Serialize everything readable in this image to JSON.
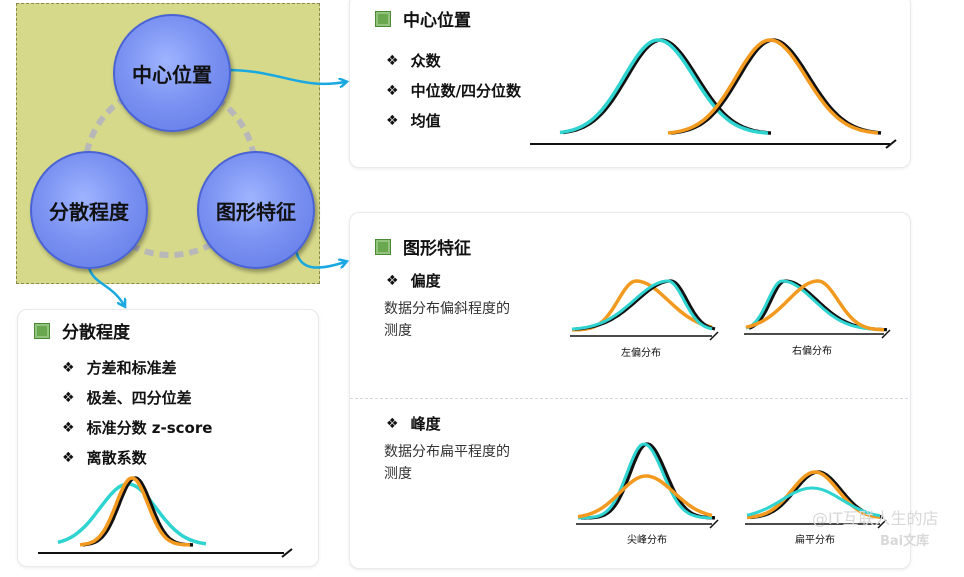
{
  "concept": {
    "center_position": "中心位置",
    "dispersion": "分散程度",
    "shape": "图形特征"
  },
  "center_panel": {
    "title": "中心位置",
    "items": [
      "众数",
      "中位数/四分位数",
      "均值"
    ]
  },
  "shape_panel": {
    "title": "图形特征",
    "skew": {
      "label": "偏度",
      "desc_line1": "数据分布偏斜程度的",
      "desc_line2": "测度",
      "left_caption": "左偏分布",
      "right_caption": "右偏分布"
    },
    "kurtosis": {
      "label": "峰度",
      "desc_line1": "数据分布扁平程度的",
      "desc_line2": "测度",
      "peak_caption": "尖峰分布",
      "flat_caption": "扁平分布"
    }
  },
  "dispersion_panel": {
    "title": "分散程度",
    "items": [
      "方差和标准差",
      "极差、四分位差",
      "标准分数 z-score",
      "离散系数"
    ]
  },
  "bullet_symbol": "❖",
  "colors": {
    "cyan": "#2fd3cf",
    "orange": "#f29a1f",
    "concept_bg": "#d7d98a",
    "circle": "#7c93f2",
    "arrow": "#1aa8e0"
  },
  "watermark": {
    "text": "@IT互联人生的店",
    "brand": "Bai文库"
  }
}
